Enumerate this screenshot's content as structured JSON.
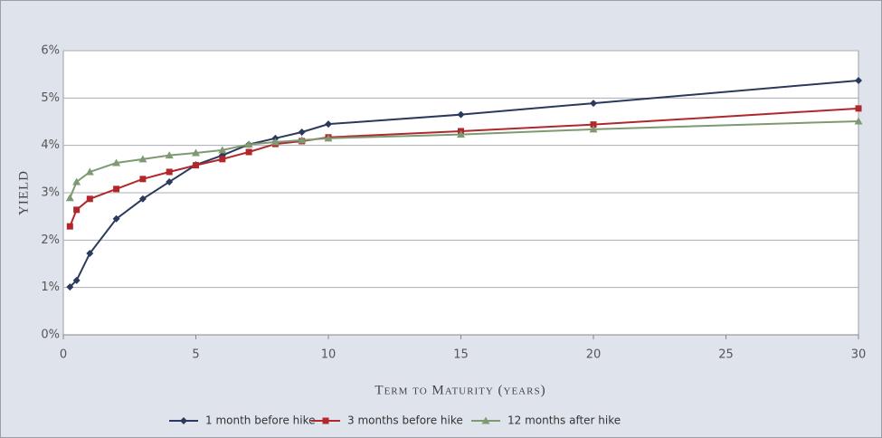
{
  "chart_data": {
    "type": "line",
    "x_label": "Term to Maturity (years)",
    "y_label": "YIELD",
    "xlim": [
      0,
      30
    ],
    "xticks": [
      0,
      5,
      10,
      15,
      20,
      25,
      30
    ],
    "ylim": [
      0,
      6
    ],
    "yticks": [
      {
        "value": 0,
        "label": "0%"
      },
      {
        "value": 1,
        "label": "1%"
      },
      {
        "value": 2,
        "label": "2%"
      },
      {
        "value": 3,
        "label": "3%"
      },
      {
        "value": 4,
        "label": "4%"
      },
      {
        "value": 5,
        "label": "5%"
      },
      {
        "value": 6,
        "label": "6%"
      }
    ],
    "grid": true,
    "legend": "bottom",
    "x": [
      0.25,
      0.5,
      1,
      2,
      3,
      4,
      5,
      6,
      7,
      8,
      9,
      10,
      15,
      20,
      30
    ],
    "series": [
      {
        "name": "1 month before hike",
        "color": "#2b3a5c",
        "marker": "diamond",
        "values": [
          1.01,
          1.15,
          1.72,
          2.45,
          2.87,
          3.23,
          3.59,
          3.79,
          4.02,
          4.15,
          4.28,
          4.45,
          4.65,
          4.89,
          5.37
        ]
      },
      {
        "name": "3 months before hike",
        "color": "#b0282c",
        "marker": "square",
        "values": [
          2.29,
          2.64,
          2.87,
          3.08,
          3.29,
          3.44,
          3.58,
          3.71,
          3.86,
          4.03,
          4.09,
          4.17,
          4.3,
          4.44,
          4.78
        ]
      },
      {
        "name": "12 months after hike",
        "color": "#7d9a72",
        "marker": "triangle",
        "values": [
          2.89,
          3.23,
          3.44,
          3.63,
          3.71,
          3.79,
          3.84,
          3.9,
          4.02,
          4.07,
          4.11,
          4.15,
          4.23,
          4.34,
          4.51
        ]
      }
    ]
  }
}
